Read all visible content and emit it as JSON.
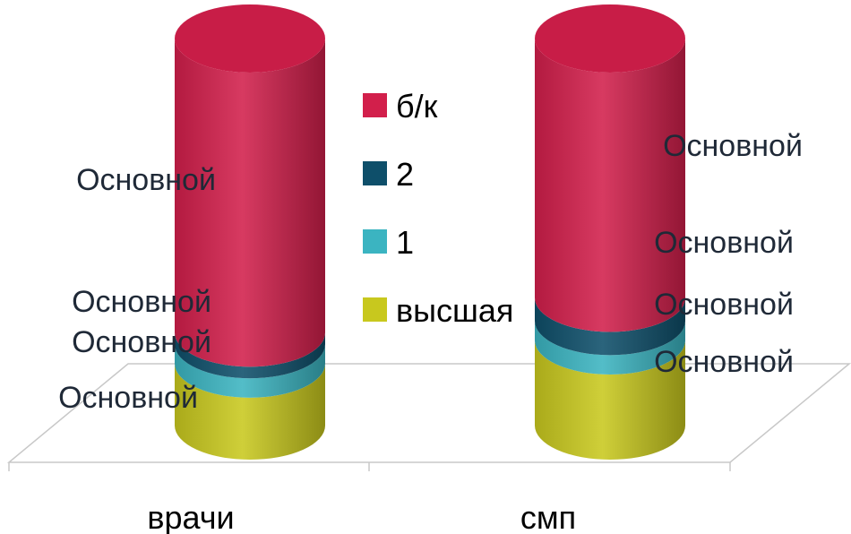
{
  "chart_data": {
    "type": "bar",
    "stacked": true,
    "style": "3d-cylinder",
    "categories": [
      "врачи",
      "смп"
    ],
    "series": [
      {
        "name": "высшая",
        "color": "#c8c81e",
        "values": [
          16,
          22
        ]
      },
      {
        "name": "1",
        "color": "#3bb4c1",
        "values": [
          5,
          5
        ]
      },
      {
        "name": "2",
        "color": "#0e4f6a",
        "values": [
          3,
          6
        ]
      },
      {
        "name": "б/к",
        "color": "#d21f4b",
        "values": [
          76,
          67
        ]
      }
    ],
    "data_labels": {
      "врачи": [
        "Основной",
        "Основной",
        "Основной",
        "Основной"
      ],
      "смп": [
        "Основной",
        "Основной",
        "Основной",
        "Основной"
      ]
    },
    "legend_position": "center",
    "grid": false
  }
}
